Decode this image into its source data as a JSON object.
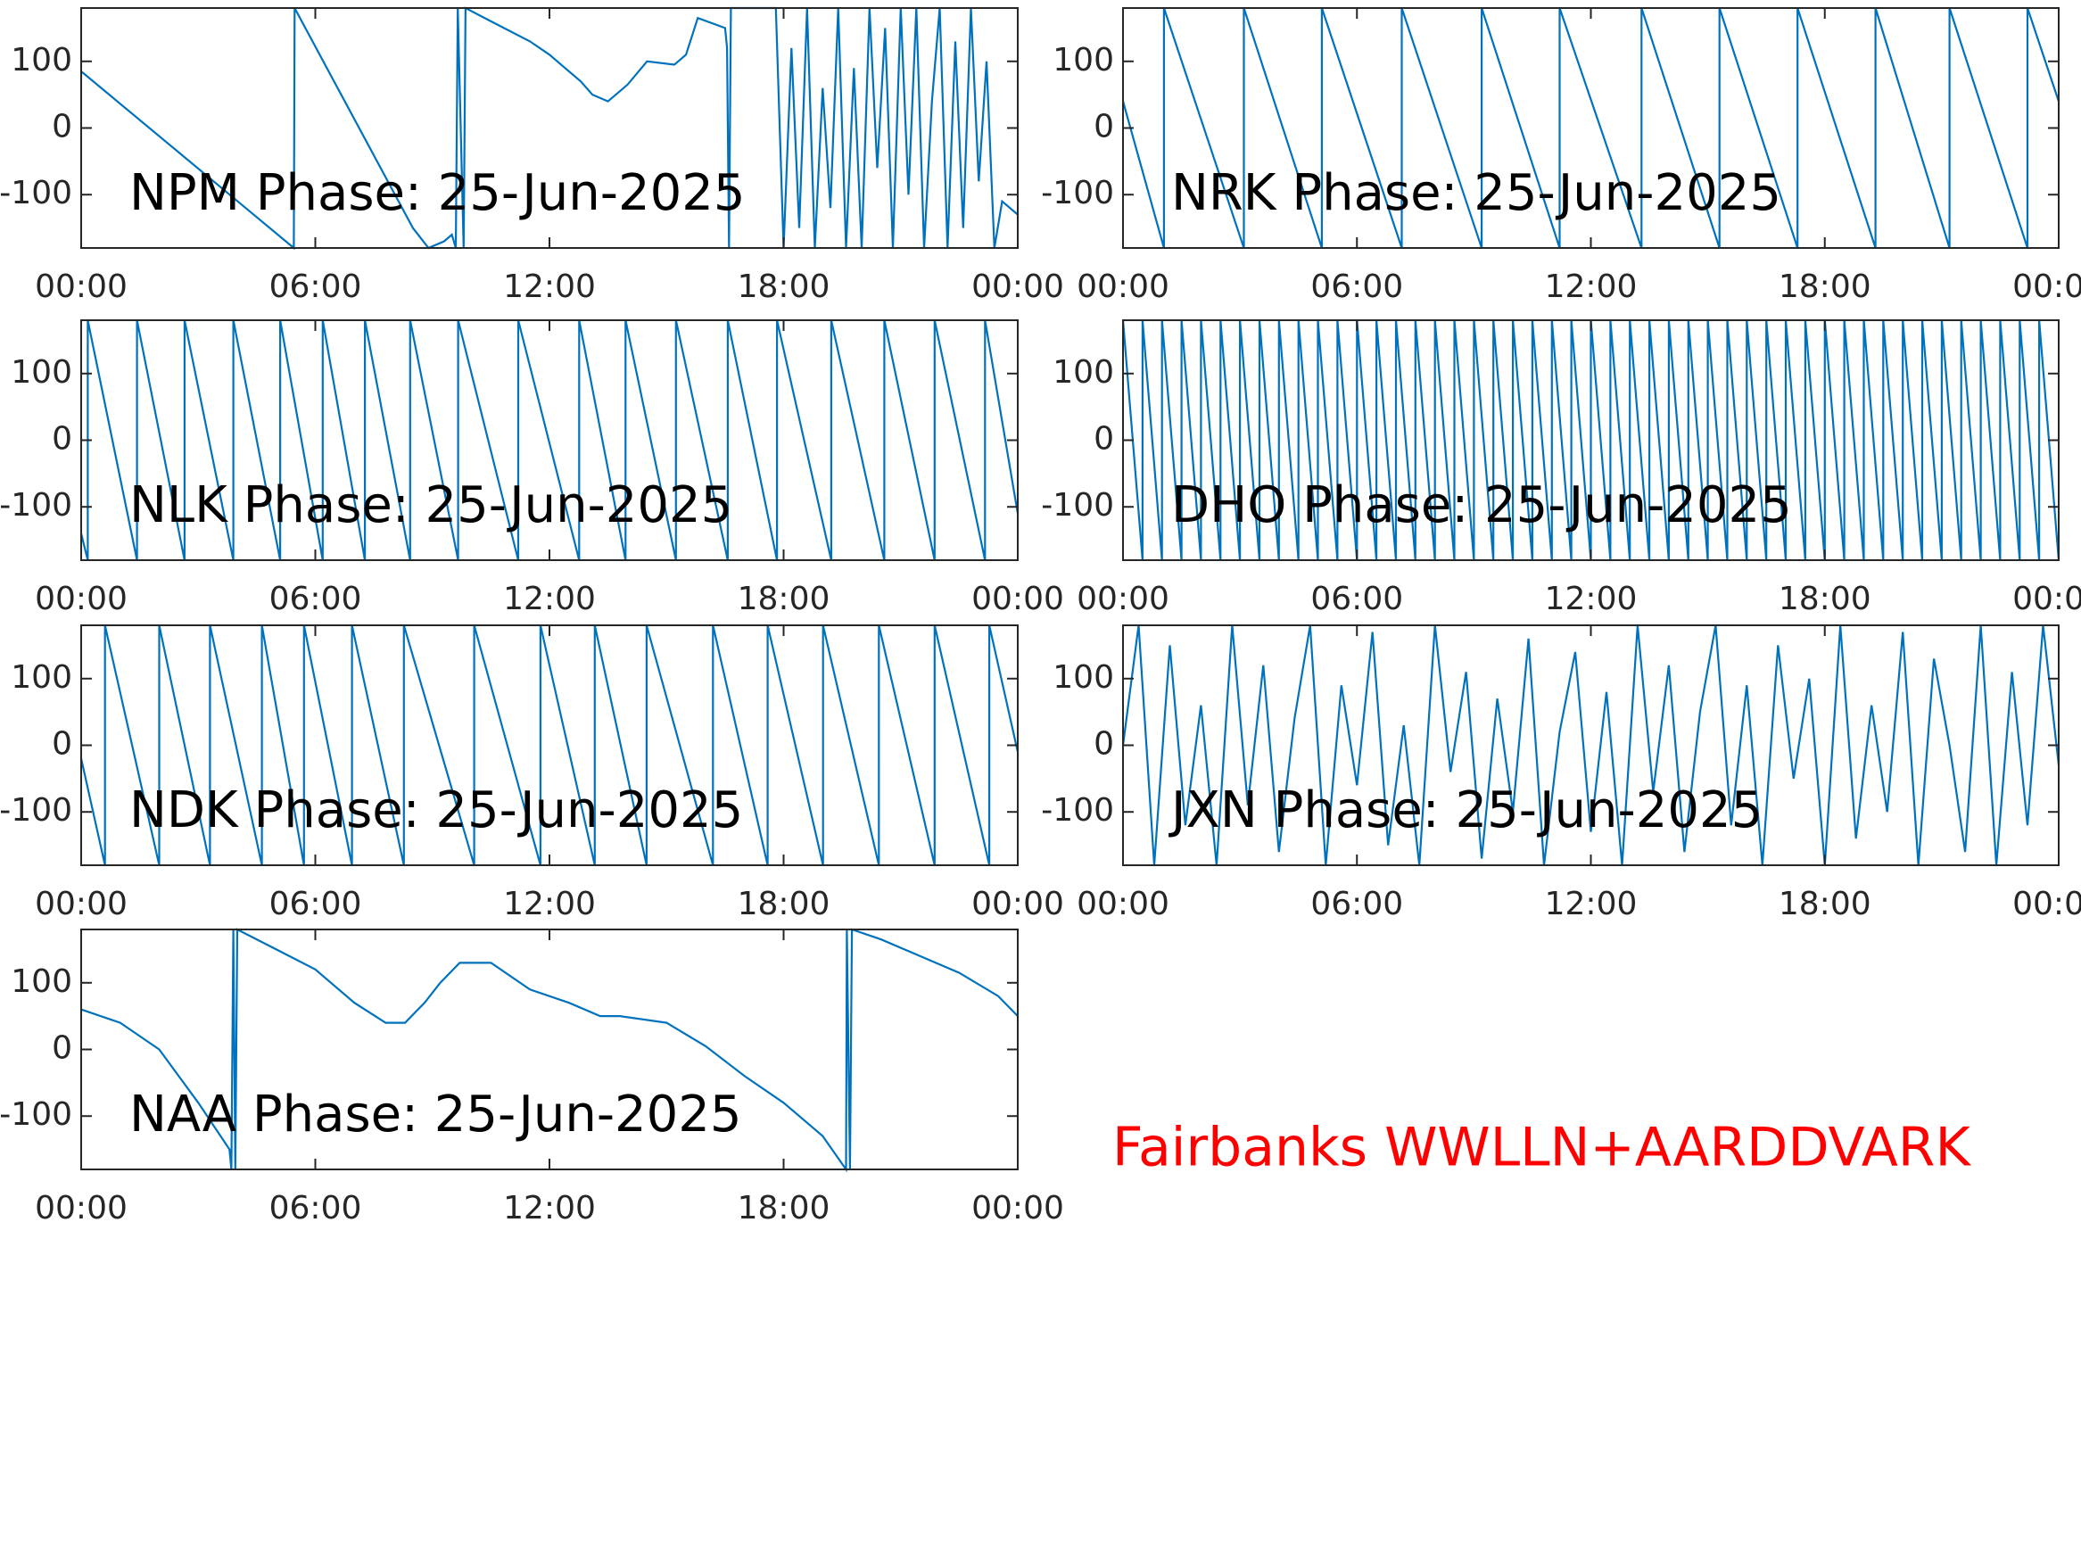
{
  "chart_data": [
    {
      "type": "line",
      "title": "NPM Phase: 25-Jun-2025",
      "color": "#0072bd",
      "x": [
        0,
        5.45,
        5.47,
        8.5,
        8.9,
        9.3,
        9.5,
        9.6,
        9.65,
        9.8,
        9.85,
        10.5,
        11.5,
        12,
        12.8,
        13.1,
        13.5,
        14,
        14.5,
        15.2,
        15.5,
        15.8,
        16.5,
        16.55,
        16.6,
        16.65,
        17.8,
        18.0,
        18.2,
        18.4,
        18.6,
        18.8,
        19.0,
        19.2,
        19.4,
        19.6,
        19.8,
        20.0,
        20.2,
        20.4,
        20.6,
        20.8,
        21.0,
        21.2,
        21.4,
        21.6,
        21.8,
        22.0,
        22.2,
        22.4,
        22.6,
        22.8,
        23.0,
        23.2,
        23.4,
        23.6,
        24
      ],
      "values": [
        85,
        -180,
        180,
        -150,
        -180,
        -170,
        -160,
        -180,
        180,
        -180,
        180,
        160,
        130,
        110,
        70,
        50,
        40,
        65,
        100,
        95,
        110,
        165,
        150,
        120,
        -180,
        180,
        180,
        -180,
        120,
        -150,
        180,
        -180,
        60,
        -120,
        180,
        -180,
        90,
        -180,
        180,
        -60,
        150,
        -180,
        180,
        -100,
        180,
        -180,
        40,
        180,
        -180,
        130,
        -150,
        180,
        -80,
        100,
        -180,
        -110,
        -130
      ],
      "xlim": [
        0,
        24
      ],
      "ylim": [
        -180,
        180
      ],
      "yticks": [
        -100,
        0,
        100
      ],
      "xticks": [
        {
          "value": 0,
          "label": "00:00"
        },
        {
          "value": 6,
          "label": "06:00"
        },
        {
          "value": 12,
          "label": "12:00"
        },
        {
          "value": 18,
          "label": "18:00"
        },
        {
          "value": 24,
          "label": "00:00"
        }
      ]
    },
    {
      "type": "line",
      "title": "NRK Phase: 25-Jun-2025",
      "color": "#0072bd",
      "x": [
        0,
        1.05,
        1.05,
        3.1,
        3.1,
        5.1,
        5.1,
        7.15,
        7.15,
        9.2,
        9.2,
        11.2,
        11.2,
        13.3,
        13.3,
        15.3,
        15.3,
        17.3,
        17.3,
        19.3,
        19.3,
        21.2,
        21.2,
        23.2,
        23.2,
        24
      ],
      "values": [
        40,
        -180,
        180,
        -180,
        180,
        -180,
        180,
        -180,
        180,
        -180,
        180,
        -180,
        180,
        -180,
        180,
        -180,
        180,
        -180,
        180,
        -180,
        180,
        -180,
        180,
        -180,
        180,
        40
      ],
      "xlim": [
        0,
        24
      ],
      "ylim": [
        -180,
        180
      ],
      "yticks": [
        -100,
        0,
        100
      ],
      "xticks": [
        {
          "value": 0,
          "label": "00:00"
        },
        {
          "value": 6,
          "label": "06:00"
        },
        {
          "value": 12,
          "label": "12:00"
        },
        {
          "value": 18,
          "label": "18:00"
        },
        {
          "value": 24,
          "label": "00:00"
        }
      ]
    },
    {
      "type": "line",
      "title": "NLK Phase: 25-Jun-2025",
      "color": "#0072bd",
      "x": [
        0,
        0.17,
        0.17,
        1.43,
        1.43,
        2.65,
        2.65,
        3.9,
        3.9,
        5.1,
        5.1,
        6.19,
        6.19,
        7.27,
        7.27,
        8.43,
        8.43,
        9.66,
        9.66,
        11.2,
        11.2,
        12.76,
        12.76,
        13.95,
        13.95,
        15.24,
        15.24,
        16.57,
        16.57,
        17.83,
        17.83,
        19.22,
        19.22,
        20.58,
        20.58,
        21.87,
        21.87,
        23.16,
        23.16,
        24
      ],
      "values": [
        -140,
        -180,
        180,
        -180,
        180,
        -180,
        180,
        -180,
        180,
        -180,
        180,
        -180,
        180,
        -180,
        180,
        -180,
        180,
        -180,
        180,
        -180,
        180,
        -180,
        180,
        -180,
        180,
        -180,
        180,
        -180,
        180,
        -180,
        180,
        -180,
        180,
        -180,
        180,
        -180,
        180,
        -180,
        180,
        -110
      ],
      "xlim": [
        0,
        24
      ],
      "ylim": [
        -180,
        180
      ],
      "yticks": [
        -100,
        0,
        100
      ],
      "xticks": [
        {
          "value": 0,
          "label": "00:00"
        },
        {
          "value": 6,
          "label": "06:00"
        },
        {
          "value": 12,
          "label": "12:00"
        },
        {
          "value": 18,
          "label": "18:00"
        },
        {
          "value": 24,
          "label": "00:00"
        }
      ]
    },
    {
      "type": "line",
      "title": "DHO Phase: 25-Jun-2025",
      "color": "#0072bd",
      "x": [
        0,
        0.5,
        0.5,
        1,
        1,
        1.5,
        1.5,
        2,
        2,
        2.5,
        2.5,
        3,
        3,
        3.5,
        3.5,
        4,
        4,
        4.5,
        4.5,
        5,
        5,
        5.5,
        5.5,
        6,
        6,
        6.5,
        6.5,
        7,
        7,
        7.5,
        7.5,
        8,
        8,
        8.5,
        8.5,
        9,
        9,
        9.5,
        9.5,
        10,
        10,
        10.5,
        10.5,
        11,
        11,
        11.5,
        11.5,
        12,
        12,
        12.5,
        12.5,
        13,
        13,
        13.5,
        13.5,
        14,
        14,
        14.5,
        14.5,
        15,
        15,
        15.5,
        15.5,
        16,
        16,
        16.5,
        16.5,
        17,
        17,
        17.5,
        17.5,
        18,
        18,
        18.5,
        18.5,
        19,
        19,
        19.5,
        19.5,
        20,
        20,
        20.5,
        20.5,
        21,
        21,
        21.5,
        21.5,
        22,
        22,
        22.5,
        22.5,
        23,
        23,
        23.5,
        23.5,
        24
      ],
      "values": [
        180,
        -180,
        180,
        -180,
        180,
        -180,
        180,
        -180,
        180,
        -180,
        180,
        -180,
        180,
        -180,
        180,
        -180,
        180,
        -180,
        180,
        -180,
        180,
        -180,
        180,
        -180,
        180,
        -180,
        180,
        -180,
        180,
        -180,
        180,
        -180,
        180,
        -180,
        180,
        -180,
        180,
        -180,
        180,
        -180,
        180,
        -180,
        180,
        -180,
        180,
        -180,
        180,
        -180,
        180,
        -180,
        180,
        -180,
        180,
        -180,
        180,
        -180,
        180,
        -180,
        180,
        -180,
        180,
        -180,
        180,
        -180,
        180,
        -180,
        180,
        -180,
        180,
        -180,
        180,
        -180,
        180,
        -180,
        180,
        -180,
        180,
        -180,
        180,
        -180,
        180,
        -180,
        180,
        -180,
        180,
        -180,
        180,
        -180,
        180,
        -180,
        180,
        -180,
        180,
        -180,
        180,
        -180
      ],
      "xlim": [
        0,
        24
      ],
      "ylim": [
        -180,
        180
      ],
      "yticks": [
        -100,
        0,
        100
      ],
      "xticks": [
        {
          "value": 0,
          "label": "00:00"
        },
        {
          "value": 6,
          "label": "06:00"
        },
        {
          "value": 12,
          "label": "12:00"
        },
        {
          "value": 18,
          "label": "18:00"
        },
        {
          "value": 24,
          "label": "00:00"
        }
      ]
    },
    {
      "type": "line",
      "title": "NDK Phase: 25-Jun-2025",
      "color": "#0072bd",
      "x": [
        0,
        0.61,
        0.61,
        2.0,
        2.0,
        3.3,
        3.3,
        4.63,
        4.63,
        5.71,
        5.71,
        6.94,
        6.94,
        8.27,
        8.27,
        10.07,
        10.07,
        11.77,
        11.77,
        13.16,
        13.16,
        14.49,
        14.49,
        16.19,
        16.19,
        17.59,
        17.59,
        19.01,
        19.01,
        20.44,
        20.44,
        21.87,
        21.87,
        23.27,
        23.27,
        24
      ],
      "values": [
        -20,
        -180,
        180,
        -180,
        180,
        -180,
        180,
        -180,
        180,
        -180,
        180,
        -180,
        180,
        -180,
        180,
        -180,
        180,
        -180,
        180,
        -180,
        180,
        -180,
        180,
        -180,
        180,
        -180,
        180,
        -180,
        180,
        -180,
        180,
        -180,
        180,
        -180,
        180,
        -10
      ],
      "xlim": [
        0,
        24
      ],
      "ylim": [
        -180,
        180
      ],
      "yticks": [
        -100,
        0,
        100
      ],
      "xticks": [
        {
          "value": 0,
          "label": "00:00"
        },
        {
          "value": 6,
          "label": "06:00"
        },
        {
          "value": 12,
          "label": "12:00"
        },
        {
          "value": 18,
          "label": "18:00"
        },
        {
          "value": 24,
          "label": "00:00"
        }
      ]
    },
    {
      "type": "line",
      "title": "JXN Phase: 25-Jun-2025",
      "color": "#0072bd",
      "x": [
        0,
        0.4,
        0.8,
        1.2,
        1.6,
        2.0,
        2.4,
        2.8,
        3.2,
        3.6,
        4.0,
        4.4,
        4.8,
        5.2,
        5.6,
        6.0,
        6.4,
        6.8,
        7.2,
        7.6,
        8.0,
        8.4,
        8.8,
        9.2,
        9.6,
        10.0,
        10.4,
        10.8,
        11.2,
        11.6,
        12.0,
        12.4,
        12.8,
        13.2,
        13.6,
        14.0,
        14.4,
        14.8,
        15.2,
        15.6,
        16.0,
        16.4,
        16.8,
        17.2,
        17.6,
        18.0,
        18.4,
        18.8,
        19.2,
        19.6,
        20.0,
        20.4,
        20.8,
        21.2,
        21.6,
        22.0,
        22.4,
        22.8,
        23.2,
        23.6,
        24
      ],
      "values": [
        0,
        180,
        -180,
        150,
        -120,
        60,
        -180,
        180,
        -90,
        120,
        -160,
        40,
        180,
        -180,
        90,
        -60,
        170,
        -150,
        30,
        -180,
        180,
        -40,
        110,
        -170,
        70,
        -100,
        160,
        -180,
        20,
        140,
        -130,
        80,
        -180,
        180,
        -70,
        120,
        -160,
        50,
        180,
        -120,
        90,
        -180,
        150,
        -50,
        100,
        -180,
        180,
        -140,
        60,
        -100,
        170,
        -180,
        130,
        0,
        -160,
        180,
        -180,
        110,
        -120,
        180,
        -30
      ],
      "xlim": [
        0,
        24
      ],
      "ylim": [
        -180,
        180
      ],
      "yticks": [
        -100,
        0,
        100
      ],
      "xticks": [
        {
          "value": 0,
          "label": "00:00"
        },
        {
          "value": 6,
          "label": "06:00"
        },
        {
          "value": 12,
          "label": "12:00"
        },
        {
          "value": 18,
          "label": "18:00"
        },
        {
          "value": 24,
          "label": "00:00"
        }
      ]
    },
    {
      "type": "line",
      "title": "NAA Phase: 25-Jun-2025",
      "color": "#0072bd",
      "x": [
        0,
        1,
        2,
        3,
        3.8,
        3.85,
        3.9,
        3.95,
        4.0,
        5,
        6,
        7,
        7.8,
        8.3,
        8.8,
        9.2,
        9.7,
        10.5,
        11.5,
        12.5,
        13.3,
        13.8,
        15,
        16,
        17,
        18,
        19,
        19.6,
        19.62,
        19.7,
        19.75,
        20.5,
        21.5,
        22.5,
        23.5,
        24
      ],
      "values": [
        60,
        40,
        0,
        -80,
        -150,
        -180,
        180,
        -180,
        180,
        150,
        120,
        70,
        40,
        40,
        70,
        100,
        130,
        130,
        90,
        70,
        50,
        50,
        40,
        5,
        -40,
        -80,
        -130,
        -180,
        180,
        -180,
        180,
        165,
        140,
        115,
        80,
        50
      ],
      "xlim": [
        0,
        24
      ],
      "ylim": [
        -180,
        180
      ],
      "yticks": [
        -100,
        0,
        100
      ],
      "xticks": [
        {
          "value": 0,
          "label": "00:00"
        },
        {
          "value": 6,
          "label": "06:00"
        },
        {
          "value": 12,
          "label": "12:00"
        },
        {
          "value": 18,
          "label": "18:00"
        },
        {
          "value": 24,
          "label": "00:00"
        }
      ]
    }
  ],
  "annotation": {
    "text": "Fairbanks WWLLN+AARDDVARK",
    "color": "#ff0000"
  }
}
